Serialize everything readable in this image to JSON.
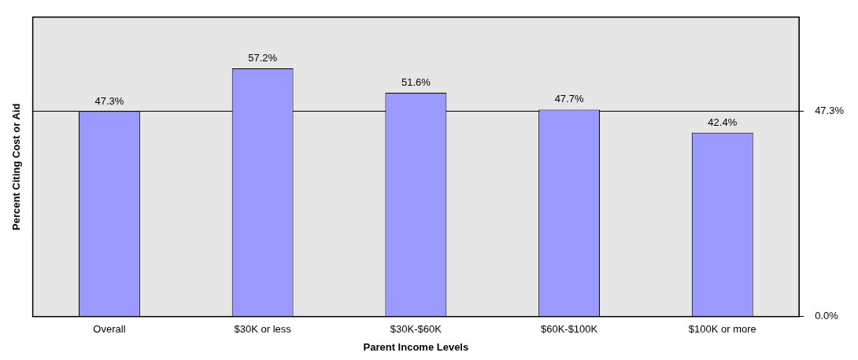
{
  "chart_data": {
    "type": "bar",
    "xlabel": "Parent Income Levels",
    "ylabel": "Percent Citing Cost or Aid",
    "categories": [
      "Overall",
      "$30K or less",
      "$30K-$60K",
      "$60K-$100K",
      "$100K or more"
    ],
    "values": [
      47.3,
      57.2,
      51.6,
      47.7,
      42.4
    ],
    "value_labels": [
      "47.3%",
      "57.2%",
      "51.6%",
      "47.7%",
      "42.4%"
    ],
    "color": "#9999ff",
    "ylim": [
      0,
      69
    ],
    "yticks": [
      {
        "value": 0,
        "label": "0.0%"
      },
      {
        "value": 47.3,
        "label": "47.3%"
      }
    ],
    "grid": "y",
    "legend": false
  }
}
